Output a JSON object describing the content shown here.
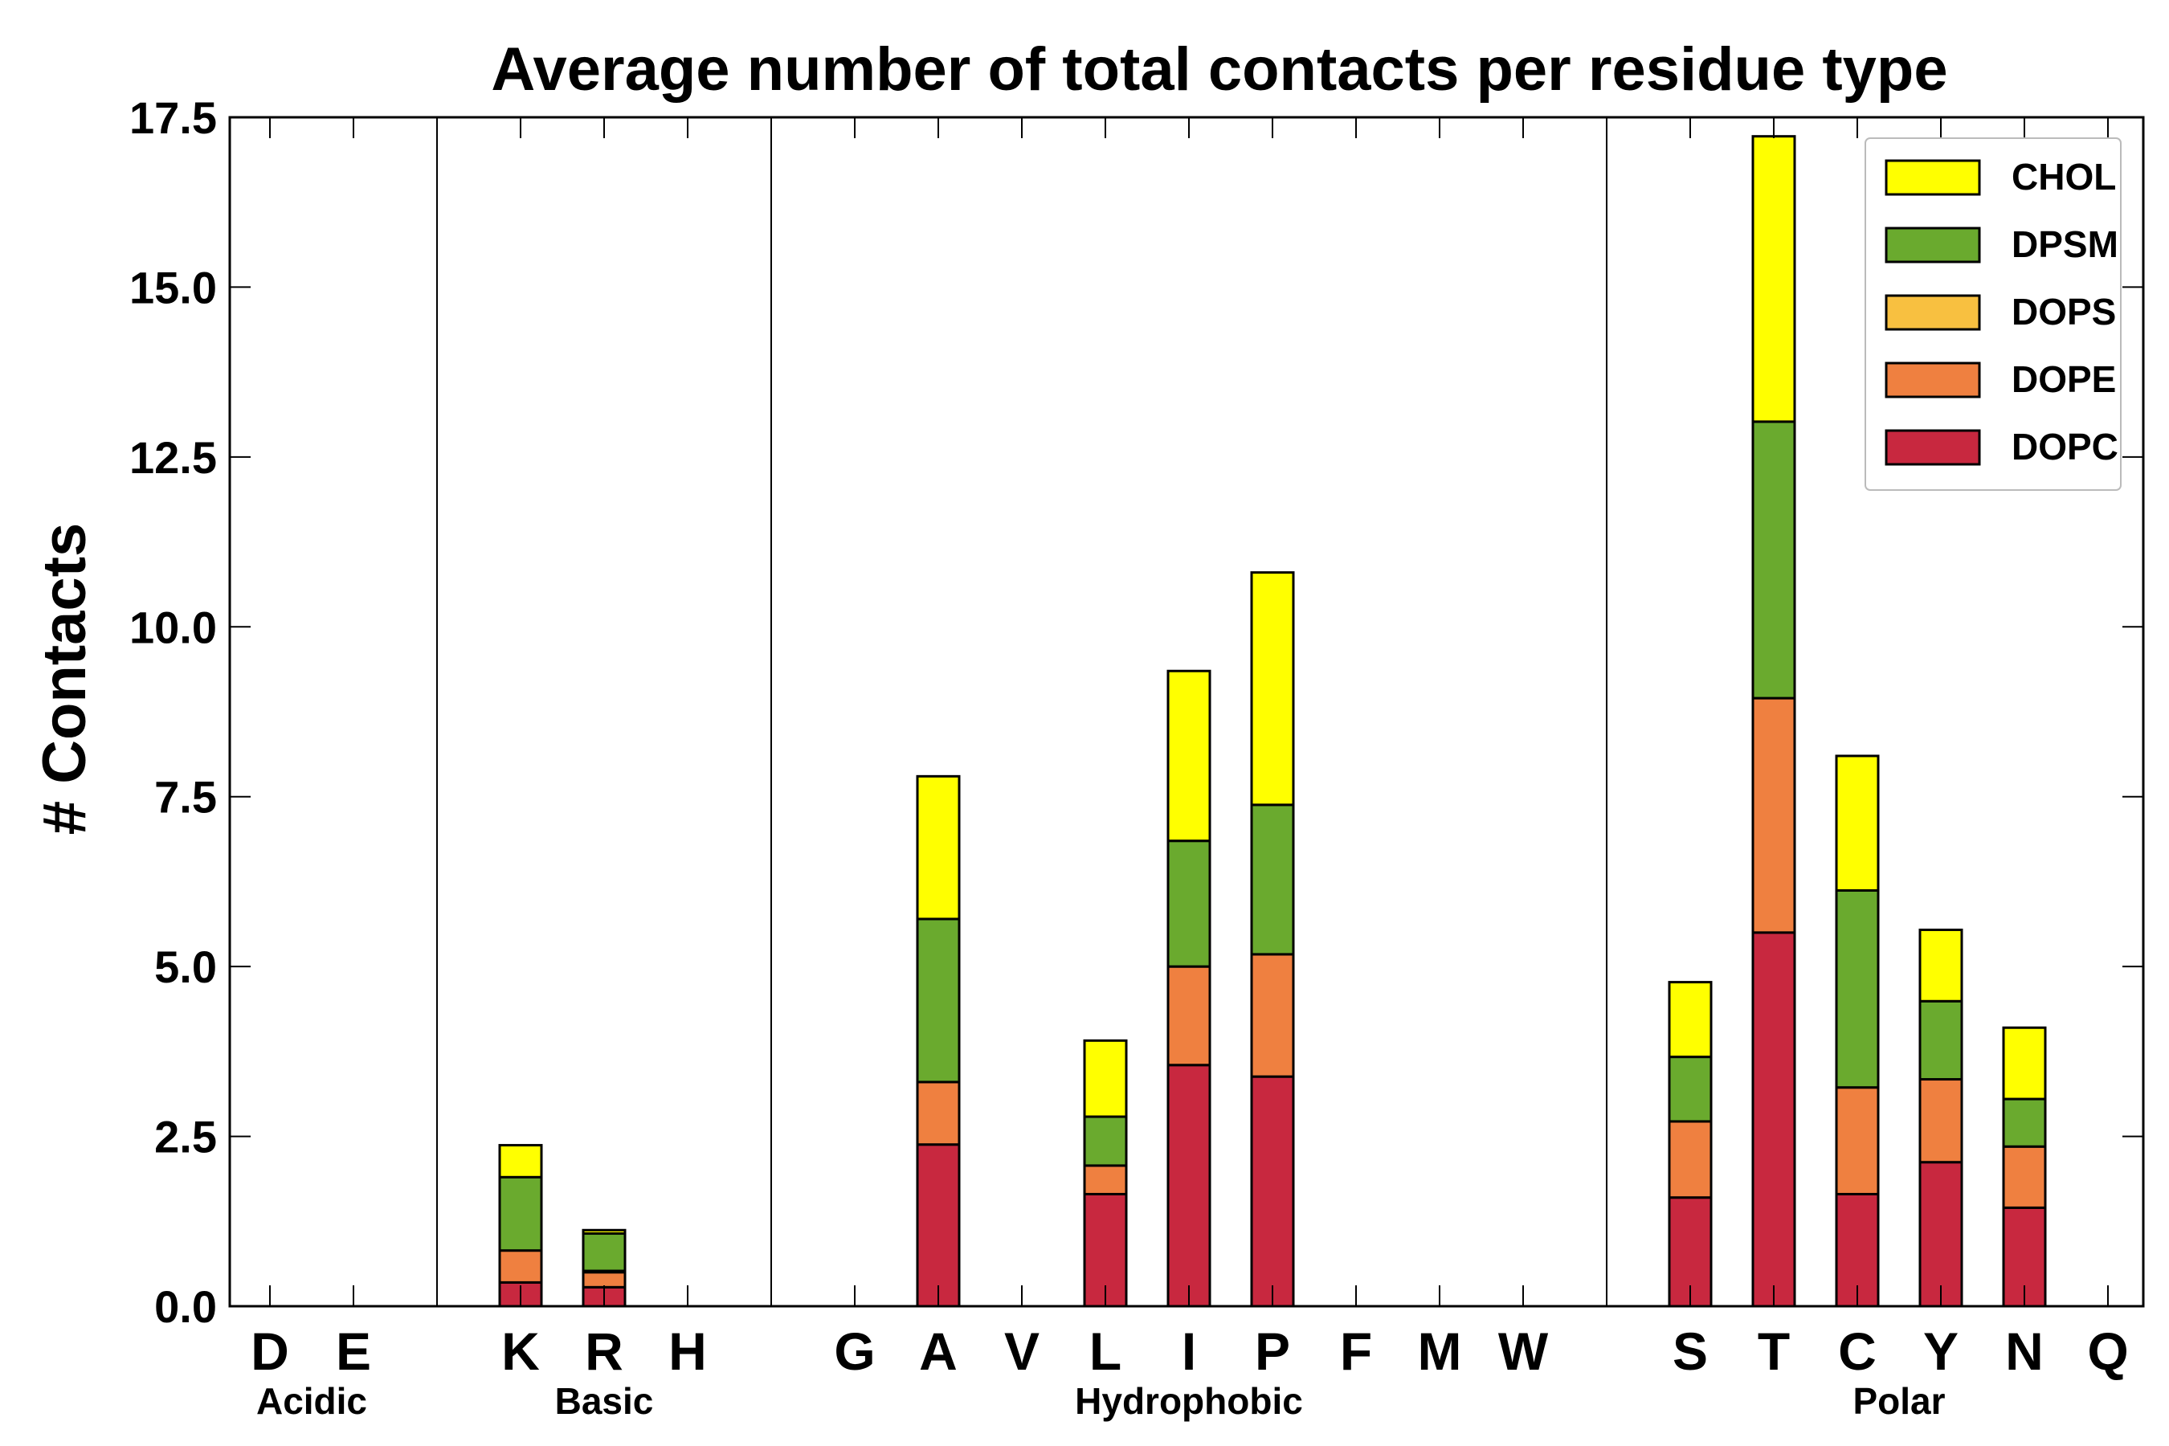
{
  "chart_data": {
    "type": "bar",
    "stacked": true,
    "title": "Average number of total contacts per residue type",
    "xlabel": "",
    "ylabel": "# Contacts",
    "ylim": [
      0,
      17.5
    ],
    "yticks": [
      "0.0",
      "2.5",
      "5.0",
      "7.5",
      "10.0",
      "12.5",
      "15.0",
      "17.5"
    ],
    "categories": [
      "D",
      "E",
      "",
      "K",
      "R",
      "H",
      "",
      "G",
      "A",
      "V",
      "L",
      "I",
      "P",
      "F",
      "M",
      "W",
      "",
      "S",
      "T",
      "C",
      "Y",
      "N",
      "Q"
    ],
    "groups": [
      {
        "label": "Acidic",
        "start": 0,
        "end": 1
      },
      {
        "label": "Basic",
        "start": 3,
        "end": 5
      },
      {
        "label": "Hydrophobic",
        "start": 7,
        "end": 15
      },
      {
        "label": "Polar",
        "start": 17,
        "end": 22
      }
    ],
    "separators_after": [
      2,
      6,
      16
    ],
    "legend_position": "top-right",
    "grid": false,
    "series": [
      {
        "name": "DOPC",
        "color": "#c8283f",
        "values": [
          0,
          0,
          0,
          0.35,
          0.28,
          0,
          0,
          0,
          2.38,
          0,
          1.65,
          3.55,
          3.38,
          0,
          0,
          0,
          0,
          1.6,
          5.5,
          1.65,
          2.12,
          1.45,
          0
        ]
      },
      {
        "name": "DOPE",
        "color": "#ef8040",
        "values": [
          0,
          0,
          0,
          0.47,
          0.22,
          0,
          0,
          0,
          0.92,
          0,
          0.42,
          1.45,
          1.8,
          0,
          0,
          0,
          0,
          1.12,
          3.45,
          1.57,
          1.22,
          0.9,
          0
        ]
      },
      {
        "name": "DOPS",
        "color": "#f8c040",
        "values": [
          0,
          0,
          0,
          0,
          0.02,
          0,
          0,
          0,
          0,
          0,
          0,
          0,
          0,
          0,
          0,
          0,
          0,
          0,
          0,
          0,
          0,
          0,
          0
        ]
      },
      {
        "name": "DPSM",
        "color": "#6aaa2e",
        "values": [
          0,
          0,
          0,
          1.08,
          0.55,
          0,
          0,
          0,
          2.4,
          0,
          0.72,
          1.85,
          2.2,
          0,
          0,
          0,
          0,
          0.95,
          4.07,
          2.9,
          1.15,
          0.7,
          0
        ]
      },
      {
        "name": "CHOL",
        "color": "#ffff00",
        "values": [
          0,
          0,
          0,
          0.47,
          0.05,
          0,
          0,
          0,
          2.1,
          0,
          1.12,
          2.5,
          3.42,
          0,
          0,
          0,
          0,
          1.1,
          4.2,
          1.98,
          1.05,
          1.05,
          0
        ]
      }
    ]
  }
}
